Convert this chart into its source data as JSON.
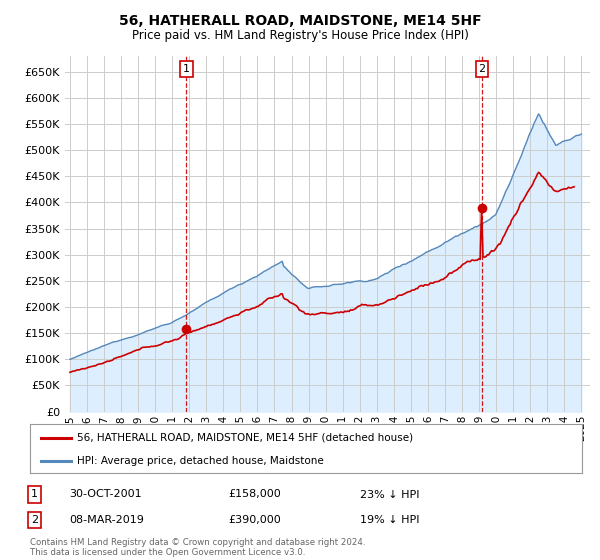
{
  "title": "56, HATHERALL ROAD, MAIDSTONE, ME14 5HF",
  "subtitle": "Price paid vs. HM Land Registry's House Price Index (HPI)",
  "ylim": [
    0,
    680000
  ],
  "yticks": [
    0,
    50000,
    100000,
    150000,
    200000,
    250000,
    300000,
    350000,
    400000,
    450000,
    500000,
    550000,
    600000,
    650000
  ],
  "sale1_date_num": 2001.83,
  "sale1_price": 158000,
  "sale2_date_num": 2019.18,
  "sale2_price": 390000,
  "line_color_property": "#cc0000",
  "line_color_hpi": "#5588bb",
  "fill_color_hpi": "#ddeeff",
  "vline_color": "#cc0000",
  "grid_color": "#cccccc",
  "background_color": "#ffffff",
  "legend_label_property": "56, HATHERALL ROAD, MAIDSTONE, ME14 5HF (detached house)",
  "legend_label_hpi": "HPI: Average price, detached house, Maidstone",
  "annotation1_label": "1",
  "annotation1_date": "30-OCT-2001",
  "annotation1_price": "£158,000",
  "annotation1_pct": "23% ↓ HPI",
  "annotation2_label": "2",
  "annotation2_date": "08-MAR-2019",
  "annotation2_price": "£390,000",
  "annotation2_pct": "19% ↓ HPI",
  "footer": "Contains HM Land Registry data © Crown copyright and database right 2024.\nThis data is licensed under the Open Government Licence v3.0."
}
